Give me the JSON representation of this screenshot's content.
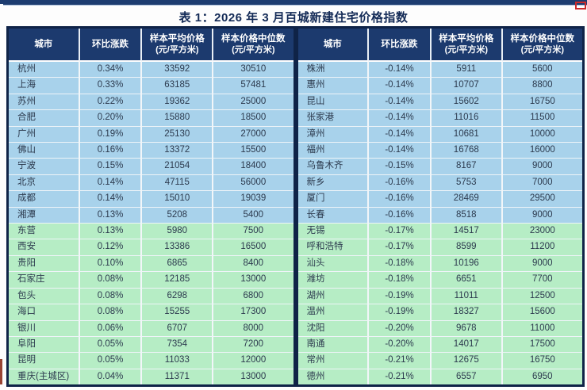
{
  "title": "表 1：2026 年 3 月百城新建住宅价格指数",
  "colors": {
    "header_navy": "#1c3a6e",
    "outer_border": "#0f2347",
    "row_blue": "#a8d2eb",
    "row_green": "#b6edc5",
    "title_navy": "#132a56",
    "red_mark": "#cc2b2b"
  },
  "columns": [
    {
      "key": "city",
      "label": "城市",
      "sub": ""
    },
    {
      "key": "change",
      "label": "环比涨跌",
      "sub": ""
    },
    {
      "key": "avg",
      "label": "样本平均价格",
      "sub": "(元/平方米)"
    },
    {
      "key": "median",
      "label": "样本价格中位数",
      "sub": "(元/平方米)"
    }
  ],
  "tables": {
    "left": [
      {
        "city": "杭州",
        "change": "0.34%",
        "avg": "33592",
        "median": "30510"
      },
      {
        "city": "上海",
        "change": "0.33%",
        "avg": "63185",
        "median": "57481"
      },
      {
        "city": "苏州",
        "change": "0.22%",
        "avg": "19362",
        "median": "25000"
      },
      {
        "city": "合肥",
        "change": "0.20%",
        "avg": "15880",
        "median": "18500"
      },
      {
        "city": "广州",
        "change": "0.19%",
        "avg": "25130",
        "median": "27000"
      },
      {
        "city": "佛山",
        "change": "0.16%",
        "avg": "13372",
        "median": "15500"
      },
      {
        "city": "宁波",
        "change": "0.15%",
        "avg": "21054",
        "median": "18400"
      },
      {
        "city": "北京",
        "change": "0.14%",
        "avg": "47115",
        "median": "56000"
      },
      {
        "city": "成都",
        "change": "0.14%",
        "avg": "15010",
        "median": "19039"
      },
      {
        "city": "湘潭",
        "change": "0.13%",
        "avg": "5208",
        "median": "5400"
      },
      {
        "city": "东营",
        "change": "0.13%",
        "avg": "5980",
        "median": "7500"
      },
      {
        "city": "西安",
        "change": "0.12%",
        "avg": "13386",
        "median": "16500"
      },
      {
        "city": "贵阳",
        "change": "0.10%",
        "avg": "6865",
        "median": "8400"
      },
      {
        "city": "石家庄",
        "change": "0.08%",
        "avg": "12185",
        "median": "13000"
      },
      {
        "city": "包头",
        "change": "0.08%",
        "avg": "6298",
        "median": "6800"
      },
      {
        "city": "海口",
        "change": "0.08%",
        "avg": "15255",
        "median": "17300"
      },
      {
        "city": "银川",
        "change": "0.06%",
        "avg": "6707",
        "median": "8000"
      },
      {
        "city": "阜阳",
        "change": "0.05%",
        "avg": "7354",
        "median": "7200"
      },
      {
        "city": "昆明",
        "change": "0.05%",
        "avg": "11033",
        "median": "12000"
      },
      {
        "city": "重庆(主城区)",
        "change": "0.04%",
        "avg": "11371",
        "median": "13000"
      }
    ],
    "right": [
      {
        "city": "株洲",
        "change": "-0.14%",
        "avg": "5911",
        "median": "5600"
      },
      {
        "city": "惠州",
        "change": "-0.14%",
        "avg": "10707",
        "median": "8800"
      },
      {
        "city": "昆山",
        "change": "-0.14%",
        "avg": "15602",
        "median": "16750"
      },
      {
        "city": "张家港",
        "change": "-0.14%",
        "avg": "11016",
        "median": "11500"
      },
      {
        "city": "漳州",
        "change": "-0.14%",
        "avg": "10681",
        "median": "10000"
      },
      {
        "city": "福州",
        "change": "-0.14%",
        "avg": "16768",
        "median": "16000"
      },
      {
        "city": "乌鲁木齐",
        "change": "-0.15%",
        "avg": "8167",
        "median": "9000"
      },
      {
        "city": "新乡",
        "change": "-0.16%",
        "avg": "5753",
        "median": "7000"
      },
      {
        "city": "厦门",
        "change": "-0.16%",
        "avg": "28469",
        "median": "29500"
      },
      {
        "city": "长春",
        "change": "-0.16%",
        "avg": "8518",
        "median": "9000"
      },
      {
        "city": "无锡",
        "change": "-0.17%",
        "avg": "14517",
        "median": "23000"
      },
      {
        "city": "呼和浩特",
        "change": "-0.17%",
        "avg": "8599",
        "median": "11200"
      },
      {
        "city": "汕头",
        "change": "-0.18%",
        "avg": "10196",
        "median": "9000"
      },
      {
        "city": "潍坊",
        "change": "-0.18%",
        "avg": "6651",
        "median": "7700"
      },
      {
        "city": "湖州",
        "change": "-0.19%",
        "avg": "11011",
        "median": "12500"
      },
      {
        "city": "温州",
        "change": "-0.19%",
        "avg": "18327",
        "median": "15600"
      },
      {
        "city": "沈阳",
        "change": "-0.20%",
        "avg": "9678",
        "median": "11000"
      },
      {
        "city": "南通",
        "change": "-0.20%",
        "avg": "14017",
        "median": "17500"
      },
      {
        "city": "常州",
        "change": "-0.21%",
        "avg": "12675",
        "median": "16750"
      },
      {
        "city": "德州",
        "change": "-0.21%",
        "avg": "6557",
        "median": "6950"
      }
    ]
  },
  "row_grouping": {
    "blue_rows": "1-10",
    "green_rows": "11-20"
  }
}
